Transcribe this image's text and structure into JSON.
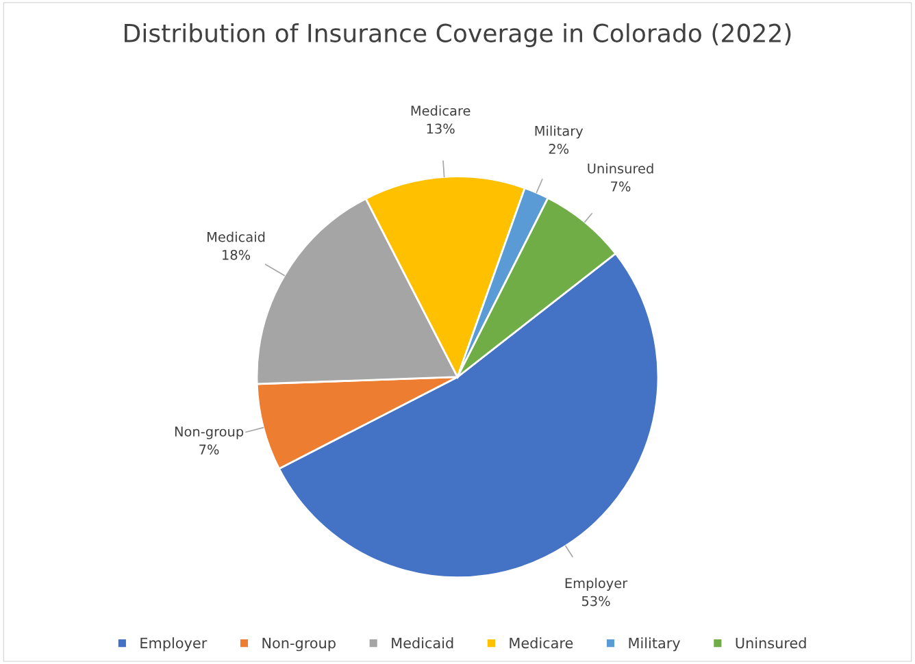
{
  "chart_data": {
    "type": "pie",
    "title": "Distribution of Insurance Coverage in Colorado (2022)",
    "categories": [
      "Employer",
      "Non-group",
      "Medicaid",
      "Medicare",
      "Military",
      "Uninsured"
    ],
    "values": [
      53,
      7,
      18,
      13,
      2,
      7
    ],
    "colors": [
      "#4472c4",
      "#ed7d31",
      "#a5a5a5",
      "#ffc000",
      "#5b9bd5",
      "#70ad47"
    ],
    "value_labels": [
      "53%",
      "7%",
      "18%",
      "13%",
      "2%",
      "7%"
    ],
    "legend": "bottom"
  }
}
